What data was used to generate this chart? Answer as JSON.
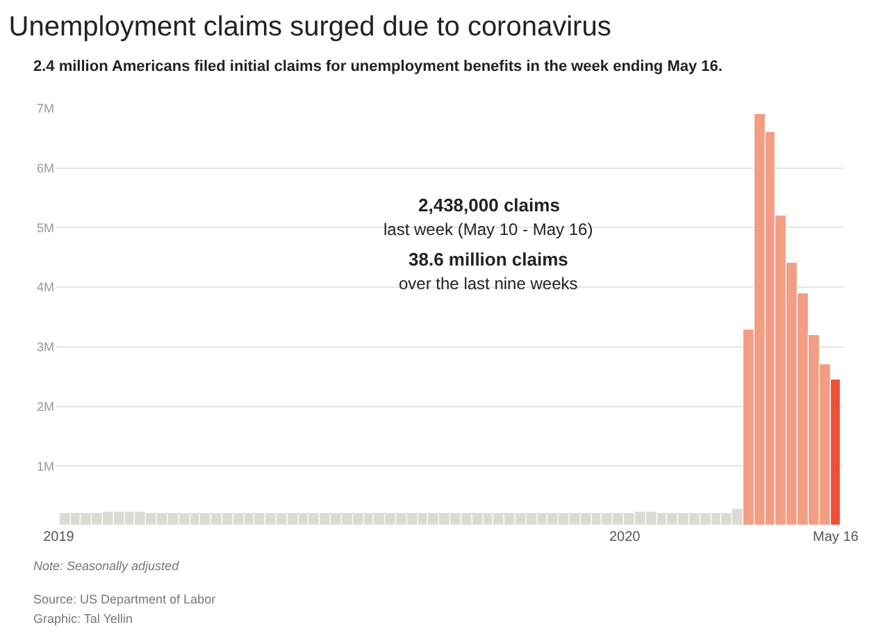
{
  "chart_data": {
    "type": "bar",
    "title": "Unemployment claims surged due to coronavirus",
    "subtitle": "2.4 million Americans filed initial claims for unemployment benefits in the week ending May 16.",
    "x": [
      "2019-01-05",
      "2019-01-12",
      "2019-01-19",
      "2019-01-26",
      "2019-02-02",
      "2019-02-09",
      "2019-02-16",
      "2019-02-23",
      "2019-03-02",
      "2019-03-09",
      "2019-03-16",
      "2019-03-23",
      "2019-03-30",
      "2019-04-06",
      "2019-04-13",
      "2019-04-20",
      "2019-04-27",
      "2019-05-04",
      "2019-05-11",
      "2019-05-18",
      "2019-05-25",
      "2019-06-01",
      "2019-06-08",
      "2019-06-15",
      "2019-06-22",
      "2019-06-29",
      "2019-07-06",
      "2019-07-13",
      "2019-07-20",
      "2019-07-27",
      "2019-08-03",
      "2019-08-10",
      "2019-08-17",
      "2019-08-24",
      "2019-08-31",
      "2019-09-07",
      "2019-09-14",
      "2019-09-21",
      "2019-09-28",
      "2019-10-05",
      "2019-10-12",
      "2019-10-19",
      "2019-10-26",
      "2019-11-02",
      "2019-11-09",
      "2019-11-16",
      "2019-11-23",
      "2019-11-30",
      "2019-12-07",
      "2019-12-14",
      "2019-12-21",
      "2019-12-28",
      "2020-01-04",
      "2020-01-11",
      "2020-01-18",
      "2020-01-25",
      "2020-02-01",
      "2020-02-08",
      "2020-02-15",
      "2020-02-22",
      "2020-02-29",
      "2020-03-07",
      "2020-03-14",
      "2020-03-21",
      "2020-03-28",
      "2020-04-04",
      "2020-04-11",
      "2020-04-18",
      "2020-04-25",
      "2020-05-02",
      "2020-05-09",
      "2020-05-16"
    ],
    "values": [
      0.22,
      0.22,
      0.22,
      0.22,
      0.23,
      0.23,
      0.23,
      0.23,
      0.22,
      0.22,
      0.22,
      0.22,
      0.22,
      0.22,
      0.21,
      0.21,
      0.21,
      0.21,
      0.21,
      0.22,
      0.22,
      0.22,
      0.22,
      0.22,
      0.22,
      0.22,
      0.22,
      0.22,
      0.22,
      0.22,
      0.22,
      0.22,
      0.22,
      0.22,
      0.22,
      0.22,
      0.22,
      0.22,
      0.22,
      0.22,
      0.22,
      0.22,
      0.22,
      0.22,
      0.22,
      0.22,
      0.22,
      0.22,
      0.22,
      0.22,
      0.22,
      0.22,
      0.22,
      0.23,
      0.23,
      0.22,
      0.22,
      0.21,
      0.21,
      0.22,
      0.22,
      0.22,
      0.28,
      3.3,
      6.9,
      6.6,
      5.2,
      4.4,
      3.9,
      3.2,
      2.7,
      2.44
    ],
    "colors": [
      "#dddad3",
      "#dddad3",
      "#dddad3",
      "#dddad3",
      "#dddad3",
      "#dddad3",
      "#dddad3",
      "#dddad3",
      "#dddad3",
      "#dddad3",
      "#dddad3",
      "#dddad3",
      "#dddad3",
      "#dddad3",
      "#dddad3",
      "#dddad3",
      "#dddad3",
      "#dddad3",
      "#dddad3",
      "#dddad3",
      "#dddad3",
      "#dddad3",
      "#dddad3",
      "#dddad3",
      "#dddad3",
      "#dddad3",
      "#dddad3",
      "#dddad3",
      "#dddad3",
      "#dddad3",
      "#dddad3",
      "#dddad3",
      "#dddad3",
      "#dddad3",
      "#dddad3",
      "#dddad3",
      "#dddad3",
      "#dddad3",
      "#dddad3",
      "#dddad3",
      "#dddad3",
      "#dddad3",
      "#dddad3",
      "#dddad3",
      "#dddad3",
      "#dddad3",
      "#dddad3",
      "#dddad3",
      "#dddad3",
      "#dddad3",
      "#dddad3",
      "#dddad3",
      "#dddad3",
      "#dddad3",
      "#dddad3",
      "#dddad3",
      "#dddad3",
      "#dddad3",
      "#dddad3",
      "#dddad3",
      "#dddad3",
      "#dddad3",
      "#dddad3",
      "#f29e85",
      "#f29e85",
      "#f29e85",
      "#f29e85",
      "#f29e85",
      "#f29e85",
      "#f29e85",
      "#f29e85",
      "#ee4f35"
    ],
    "xlim": [
      "2018-12-30",
      "2020-05-21"
    ],
    "xticks": [
      {
        "value": "2019-01-01",
        "label": "2019"
      },
      {
        "value": "2020-01-01",
        "label": "2020"
      },
      {
        "value": "2020-05-16",
        "label": "May 16"
      }
    ],
    "ylim": [
      0,
      7
    ],
    "yticks": [
      {
        "value": 1,
        "label": "1M"
      },
      {
        "value": 2,
        "label": "2M"
      },
      {
        "value": 3,
        "label": "3M"
      },
      {
        "value": 4,
        "label": "4M"
      },
      {
        "value": 5,
        "label": "5M"
      },
      {
        "value": 6,
        "label": "6M"
      },
      {
        "value": 7,
        "label": "7M"
      }
    ],
    "grid": "y",
    "annotations": [
      "2,438,000 claims",
      "last week (May 10 - May 16)",
      "38.6 million claims",
      "over the last nine weeks",
      "Note: Seasonally adjusted",
      "Source: US Department of Labor",
      "Graphic: Tal Yellin"
    ]
  }
}
